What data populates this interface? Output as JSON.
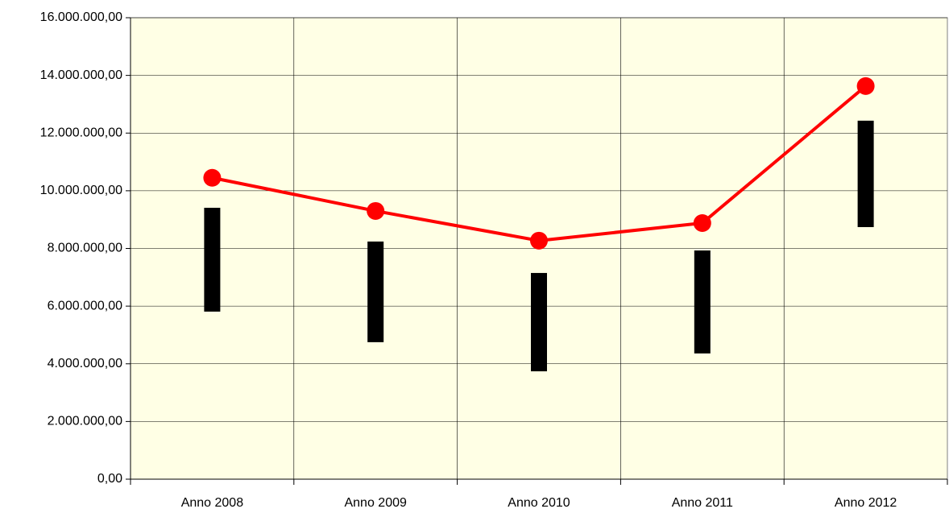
{
  "chart_data": {
    "type": "line-range",
    "categories": [
      "Anno 2008",
      "Anno 2009",
      "Anno 2010",
      "Anno 2011",
      "Anno 2012"
    ],
    "series": [
      {
        "type": "line",
        "color": "#ff0000",
        "values": [
          10450000,
          9300000,
          8270000,
          8880000,
          13630000
        ]
      },
      {
        "type": "range",
        "color": "#000000",
        "low": [
          5810000,
          4750000,
          3740000,
          4360000,
          8740000
        ],
        "high": [
          9410000,
          8240000,
          7150000,
          7930000,
          12430000
        ]
      }
    ],
    "ylim": [
      0,
      16000000
    ],
    "yticks": [
      {
        "value": 0,
        "label": "0,00"
      },
      {
        "value": 2000000,
        "label": "2.000.000,00"
      },
      {
        "value": 4000000,
        "label": "4.000.000,00"
      },
      {
        "value": 6000000,
        "label": "6.000.000,00"
      },
      {
        "value": 8000000,
        "label": "8.000.000,00"
      },
      {
        "value": 10000000,
        "label": "10.000.000,00"
      },
      {
        "value": 12000000,
        "label": "12.000.000,00"
      },
      {
        "value": 14000000,
        "label": "14.000.000,00"
      },
      {
        "value": 16000000,
        "label": "16.000.000,00"
      }
    ],
    "grid": true,
    "background": "#ffffe5"
  }
}
